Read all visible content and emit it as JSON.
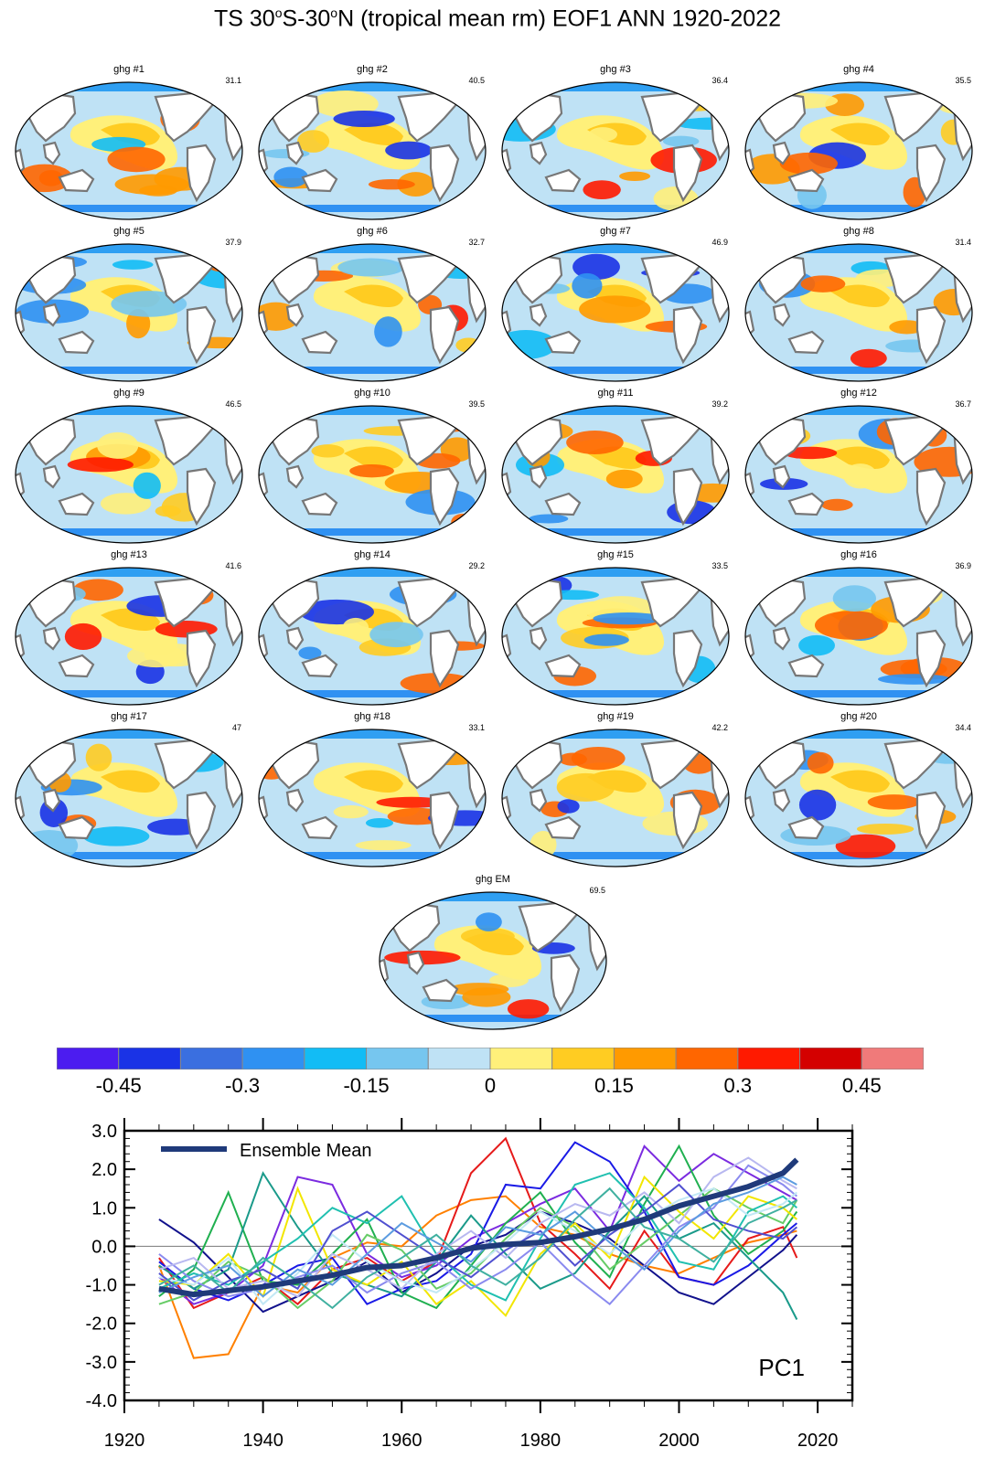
{
  "title": {
    "prefix": "TS 30",
    "deg1": "o",
    "mid": "S-30",
    "deg2": "o",
    "suffix": "N (tropical mean rm) EOF1 ANN 1920-2022"
  },
  "maps": [
    {
      "label": "ghg #1",
      "value": "31.1"
    },
    {
      "label": "ghg #2",
      "value": "40.5"
    },
    {
      "label": "ghg #3",
      "value": "36.4"
    },
    {
      "label": "ghg #4",
      "value": "35.5"
    },
    {
      "label": "ghg #5",
      "value": "37.9"
    },
    {
      "label": "ghg #6",
      "value": "32.7"
    },
    {
      "label": "ghg #7",
      "value": "46.9"
    },
    {
      "label": "ghg #8",
      "value": "31.4"
    },
    {
      "label": "ghg #9",
      "value": "46.5"
    },
    {
      "label": "ghg #10",
      "value": "39.5"
    },
    {
      "label": "ghg #11",
      "value": "39.2"
    },
    {
      "label": "ghg #12",
      "value": "36.7"
    },
    {
      "label": "ghg #13",
      "value": "41.6"
    },
    {
      "label": "ghg #14",
      "value": "29.2"
    },
    {
      "label": "ghg #15",
      "value": "33.5"
    },
    {
      "label": "ghg #16",
      "value": "36.9"
    },
    {
      "label": "ghg #17",
      "value": "47"
    },
    {
      "label": "ghg #18",
      "value": "33.1"
    },
    {
      "label": "ghg #19",
      "value": "42.2"
    },
    {
      "label": "ghg #20",
      "value": "34.4"
    },
    {
      "label": "ghg EM",
      "value": "69.5"
    }
  ],
  "colorbar": {
    "colors": [
      "#4c1cf0",
      "#1a33e6",
      "#3a6fe0",
      "#2f91f2",
      "#12bcf5",
      "#76c6ef",
      "#bfe2f5",
      "#fff07a",
      "#ffcc22",
      "#ff9a00",
      "#ff6600",
      "#ff1a00",
      "#d40000",
      "#f07a7a"
    ],
    "tick_labels": [
      "-0.45",
      "-0.3",
      "-0.15",
      "0",
      "0.15",
      "0.3",
      "0.45"
    ]
  },
  "chart_data": {
    "type": "line",
    "title": "PC1",
    "legend": "Ensemble Mean",
    "legend_position": "top-left",
    "xlim": [
      1920,
      2025
    ],
    "ylim": [
      -4.0,
      3.0
    ],
    "x_ticks": [
      "1920",
      "1940",
      "1960",
      "1980",
      "2000",
      "2020"
    ],
    "y_ticks": [
      "-4.0",
      "-3.0",
      "-2.0",
      "-1.0",
      "0.0",
      "1.0",
      "2.0",
      "3.0"
    ],
    "ensemble_mean": {
      "name": "Ensemble Mean",
      "color": "#1f3a7a",
      "x": [
        1925,
        1930,
        1935,
        1940,
        1945,
        1950,
        1955,
        1960,
        1965,
        1970,
        1975,
        1980,
        1985,
        1990,
        1995,
        2000,
        2005,
        2010,
        2015,
        2017
      ],
      "values": [
        -1.1,
        -1.25,
        -1.15,
        -1.05,
        -0.9,
        -0.75,
        -0.55,
        -0.5,
        -0.3,
        -0.05,
        0.05,
        0.1,
        0.25,
        0.45,
        0.7,
        1.05,
        1.3,
        1.55,
        1.9,
        2.25
      ]
    },
    "members": [
      {
        "name": "ghg #1",
        "color": "#ff8000",
        "values": [
          -0.5,
          -2.9,
          -2.8,
          -1.0,
          -1.2,
          -0.3,
          0.1,
          0.0,
          0.8,
          1.2,
          1.3,
          0.5,
          0.3,
          -0.2,
          -0.5,
          -0.7,
          -0.3,
          0.1,
          0.3,
          0.4
        ]
      },
      {
        "name": "ghg #2",
        "color": "#e61a1a",
        "values": [
          -0.3,
          -1.6,
          -1.2,
          -0.8,
          -1.5,
          -0.6,
          -0.3,
          -0.9,
          -0.4,
          1.9,
          2.8,
          0.6,
          -0.2,
          -1.1,
          0.4,
          -0.8,
          -1.0,
          0.2,
          0.5,
          -0.3
        ]
      },
      {
        "name": "ghg #3",
        "color": "#7b2be0",
        "values": [
          -0.8,
          -1.5,
          -1.2,
          -0.5,
          1.8,
          1.6,
          -0.2,
          -0.8,
          -0.5,
          0.2,
          0.6,
          1.1,
          1.5,
          0.4,
          2.6,
          1.7,
          2.4,
          1.9,
          1.4,
          1.2
        ]
      },
      {
        "name": "ghg #4",
        "color": "#11118c",
        "values": [
          0.7,
          0.1,
          -0.8,
          -1.7,
          -1.3,
          -0.9,
          -0.4,
          -1.2,
          -0.7,
          0.0,
          0.3,
          0.9,
          0.6,
          0.2,
          -0.5,
          -1.2,
          -1.5,
          -0.8,
          -0.1,
          0.3
        ]
      },
      {
        "name": "ghg #5",
        "color": "#1a1ae6",
        "values": [
          -0.4,
          -1.1,
          -1.4,
          -1.0,
          -0.5,
          -0.3,
          -1.5,
          -1.1,
          -0.9,
          -0.2,
          1.6,
          1.5,
          2.7,
          2.2,
          0.9,
          -0.8,
          -1.0,
          -0.5,
          0.3,
          0.6
        ]
      },
      {
        "name": "ghg #6",
        "color": "#20b050",
        "values": [
          -1.3,
          -0.6,
          1.4,
          -0.9,
          -1.0,
          -0.2,
          0.7,
          -1.2,
          -1.6,
          -0.5,
          0.6,
          1.4,
          0.1,
          -0.8,
          1.1,
          2.6,
          0.8,
          -0.2,
          0.4,
          0.9
        ]
      },
      {
        "name": "ghg #7",
        "color": "#1a9a8a",
        "values": [
          -0.5,
          -1.1,
          -0.6,
          1.9,
          0.5,
          -0.7,
          -1.0,
          -1.3,
          -0.4,
          0.8,
          -0.2,
          -1.1,
          -0.7,
          0.4,
          1.3,
          0.2,
          0.6,
          -0.3,
          -1.2,
          -1.9
        ]
      },
      {
        "name": "ghg #8",
        "color": "#66cc66",
        "values": [
          -1.5,
          -1.2,
          -0.4,
          -0.8,
          -1.6,
          -0.9,
          0.3,
          -0.1,
          -1.1,
          -0.7,
          0.2,
          1.0,
          0.5,
          -0.6,
          0.1,
          0.8,
          1.5,
          1.0,
          0.6,
          1.2
        ]
      },
      {
        "name": "ghg #9",
        "color": "#f2e600",
        "values": [
          -0.9,
          -1.0,
          -0.2,
          -1.3,
          1.5,
          -0.6,
          -1.0,
          -0.4,
          -1.5,
          -0.9,
          -1.8,
          -0.2,
          0.6,
          -0.3,
          1.8,
          0.9,
          0.2,
          1.3,
          1.0,
          0.7
        ]
      },
      {
        "name": "ghg #10",
        "color": "#20c0b0",
        "values": [
          -1.1,
          -0.7,
          -1.0,
          -0.4,
          0.2,
          1.0,
          0.6,
          1.3,
          -0.2,
          -1.0,
          -1.4,
          0.2,
          1.6,
          1.9,
          1.0,
          -0.4,
          -0.6,
          0.9,
          1.3,
          1.0
        ]
      },
      {
        "name": "ghg #11",
        "color": "#8a8aef",
        "values": [
          -0.2,
          -0.9,
          -1.3,
          -1.1,
          -0.8,
          -0.5,
          -1.2,
          -0.7,
          -0.4,
          -1.1,
          -0.6,
          0.1,
          -0.8,
          -1.5,
          -0.5,
          0.5,
          1.0,
          2.1,
          1.6,
          1.3
        ]
      },
      {
        "name": "ghg #12",
        "color": "#b8b8f0",
        "values": [
          -0.6,
          -0.3,
          -1.1,
          -0.9,
          -1.3,
          -0.2,
          -0.6,
          -1.1,
          -0.2,
          0.4,
          -0.3,
          0.6,
          1.1,
          0.8,
          1.4,
          0.6,
          1.8,
          2.3,
          1.7,
          1.5
        ]
      },
      {
        "name": "ghg #13",
        "color": "#c2e8f5",
        "values": [
          -0.8,
          -1.0,
          -0.3,
          -1.5,
          -0.7,
          0.3,
          -0.4,
          -0.9,
          -1.2,
          -0.6,
          0.1,
          0.9,
          0.4,
          -0.2,
          0.7,
          1.2,
          1.5,
          0.8,
          1.1,
          1.4
        ]
      },
      {
        "name": "ghg #14",
        "color": "#5050d0",
        "values": [
          -0.7,
          -1.4,
          -0.9,
          -0.6,
          -1.1,
          0.4,
          0.9,
          0.3,
          -0.3,
          -0.8,
          -0.1,
          0.4,
          -0.5,
          0.3,
          0.9,
          1.6,
          0.7,
          0.4,
          0.2,
          0.5
        ]
      },
      {
        "name": "ghg #15",
        "color": "#5c9ce0",
        "values": [
          -1.2,
          -0.8,
          -0.5,
          -1.3,
          -0.6,
          -1.0,
          -0.2,
          0.6,
          0.1,
          -0.4,
          0.5,
          0.3,
          0.9,
          0.1,
          -0.6,
          0.4,
          1.1,
          1.4,
          1.8,
          1.6
        ]
      },
      {
        "name": "ghg #16",
        "color": "#40b0a0",
        "values": [
          -1.0,
          -0.5,
          -1.2,
          -0.3,
          -0.9,
          -1.6,
          -0.8,
          -0.3,
          0.3,
          -0.5,
          -1.0,
          -0.3,
          0.7,
          1.5,
          0.5,
          0.2,
          -0.4,
          0.6,
          1.0,
          1.2
        ]
      }
    ]
  },
  "colors": {
    "ocean_base": "#bfe2f5",
    "land": "#ffffff",
    "coast": "#777777",
    "axis": "#000000",
    "zero_line": "#888888"
  }
}
